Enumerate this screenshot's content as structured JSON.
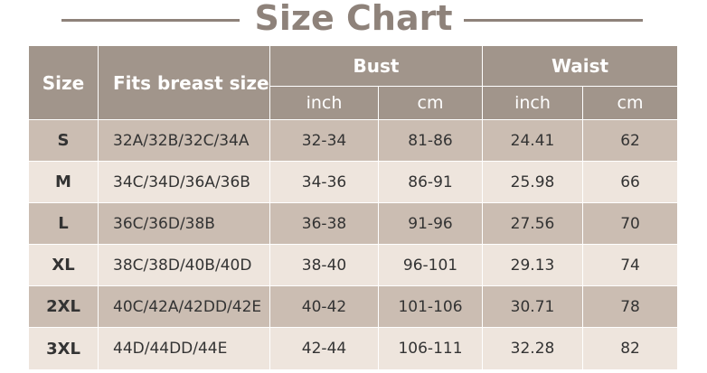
{
  "title": "Size Chart",
  "table": {
    "header": {
      "size": "Size",
      "fits": "Fits breast size",
      "groups": [
        "Bust",
        "Waist"
      ],
      "units": [
        "inch",
        "cm",
        "inch",
        "cm"
      ]
    },
    "rows": [
      [
        "S",
        "32A/32B/32C/34A",
        "32-34",
        "81-86",
        "24.41",
        "62"
      ],
      [
        "M",
        "34C/34D/36A/36B",
        "34-36",
        "86-91",
        "25.98",
        "66"
      ],
      [
        "L",
        "36C/36D/38B",
        "36-38",
        "91-96",
        "27.56",
        "70"
      ],
      [
        "XL",
        "38C/38D/40B/40D",
        "38-40",
        "96-101",
        "29.13",
        "74"
      ],
      [
        "2XL",
        "40C/42A/42DD/42E",
        "40-42",
        "101-106",
        "30.71",
        "78"
      ],
      [
        "3XL",
        "44D/44DD/44E",
        "42-44",
        "106-111",
        "32.28",
        "82"
      ]
    ]
  }
}
